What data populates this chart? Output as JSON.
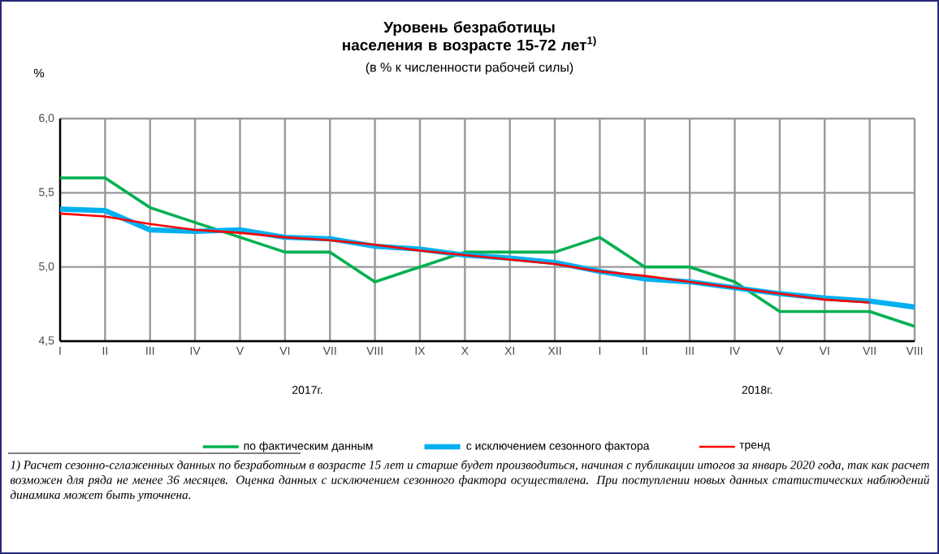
{
  "chart_data": {
    "type": "line",
    "title": "Уровень безработицы населения в возрасте 15-72 лет$^{1)}$",
    "subtitle": "(в % к численности рабочей силы)",
    "ylabel": "%",
    "categories": [
      "I",
      "II",
      "III",
      "IV",
      "V",
      "VI",
      "VII",
      "VIII",
      "IX",
      "X",
      "XI",
      "XII",
      "I",
      "II",
      "III",
      "IV",
      "V",
      "VI",
      "VII",
      "VIII"
    ],
    "series": [
      {
        "name": "по фактическим данным",
        "color": "#00b050",
        "values": [
          5.6,
          5.6,
          5.4,
          5.3,
          5.2,
          5.1,
          5.1,
          4.9,
          5.0,
          5.1,
          5.1,
          5.1,
          5.2,
          5.0,
          5.0,
          4.9,
          4.7,
          4.7,
          4.7,
          4.6
        ]
      },
      {
        "name": "с исключением сезонного фактора",
        "color": "#00b0f0",
        "values": [
          5.39,
          5.38,
          5.25,
          5.24,
          5.25,
          5.2,
          5.19,
          5.14,
          5.12,
          5.08,
          5.06,
          5.03,
          4.97,
          4.92,
          4.9,
          4.86,
          4.82,
          4.79,
          4.77,
          4.73
        ]
      },
      {
        "name": "тренд",
        "color": "#ff0000",
        "values": [
          5.36,
          5.34,
          5.29,
          5.25,
          5.23,
          5.2,
          5.18,
          5.15,
          5.11,
          5.08,
          5.05,
          5.02,
          4.97,
          4.94,
          4.9,
          4.86,
          4.82,
          4.78,
          4.76,
          null
        ]
      }
    ],
    "ylim": [
      4.5,
      6.0
    ],
    "yticks": [
      {
        "value": 4.5,
        "label": "4,5"
      },
      {
        "value": 5.0,
        "label": "5,0"
      },
      {
        "value": 5.5,
        "label": "5,5"
      },
      {
        "value": 6.0,
        "label": "6,0"
      }
    ],
    "grid": true,
    "legend": "bottom",
    "marker": "none",
    "line_style": "solid",
    "annotations": [
      "2017г.",
      "2018г.",
      "1) Расчет сезонно-сглаженных данных по безработным в возрасте 15 лет и старше будет производиться, начиная с публикации итогов за январь 2020 года, так как расчет возможен для ряда не менее 36 месяцев. Оценка данных с исключением сезонного фактора осуществлена. При поступлении новых данных статистических наблюдений динамика может быть уточнена."
    ]
  }
}
